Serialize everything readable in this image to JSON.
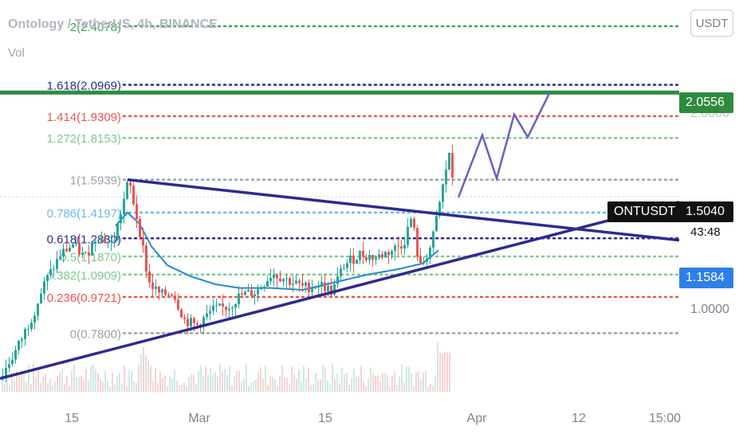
{
  "header": {
    "title": "Ontology / TetherUS, 4h, BINANCE",
    "vol_label": "Vol",
    "currency_button": "USDT"
  },
  "price_tags": {
    "target_price": "2.0556",
    "symbol": "ONTUSDT",
    "last_price": "1.5040",
    "countdown": "43:48",
    "support_price": "1.1584",
    "axis_partial_top": "2.0000",
    "axis_partial_bottom": "1.0000"
  },
  "colors": {
    "up": "#26a69a",
    "down": "#ef5350",
    "trendline": "#2e2a8f",
    "ma": "#1f8ad2",
    "projection": "#6b5fc6",
    "target_line": "#2e8b3e"
  },
  "chart_data": {
    "type": "candlestick",
    "title": "Ontology / TetherUS, 4h, BINANCE",
    "x_ticks": [
      "15",
      "Mar",
      "15",
      "Apr",
      "12",
      "15:00"
    ],
    "ylim": [
      0.5,
      2.5
    ],
    "fib_levels": [
      {
        "label": "2(2.4078)",
        "value": 2.4078,
        "color": "#3aa855"
      },
      {
        "label": "1.618(2.0969)",
        "value": 2.0969,
        "color": "#2e2a8f"
      },
      {
        "label": "1.414(1.9309)",
        "value": 1.9309,
        "color": "#ef5350"
      },
      {
        "label": "1.272(1.8153)",
        "value": 1.8153,
        "color": "#7fc98a"
      },
      {
        "label": "1(1.5939)",
        "value": 1.5939,
        "color": "#9aa0ab"
      },
      {
        "label": "0.786(1.4197)",
        "value": 1.4197,
        "color": "#6fb7ea"
      },
      {
        "label": "0.618(1.2830)",
        "value": 1.283,
        "color": "#2e2a8f"
      },
      {
        "label": "0.5(1.1870)",
        "value": 1.187,
        "color": "#7fc98a"
      },
      {
        "label": "0.382(1.0909)",
        "value": 1.0909,
        "color": "#7fc98a"
      },
      {
        "label": "0.236(0.9721)",
        "value": 0.9721,
        "color": "#ef5350"
      },
      {
        "label": "0(0.7800)",
        "value": 0.78,
        "color": "#9aa0ab"
      }
    ],
    "target_level": 2.0556,
    "last_price": 1.504,
    "support_level": 1.1584,
    "ma_path": [
      [
        145,
        1.35
      ],
      [
        160,
        1.42
      ],
      [
        175,
        1.36
      ],
      [
        190,
        1.24
      ],
      [
        210,
        1.14
      ],
      [
        240,
        1.08
      ],
      [
        270,
        1.04
      ],
      [
        300,
        1.02
      ],
      [
        340,
        1.02
      ],
      [
        380,
        1.01
      ],
      [
        420,
        1.05
      ],
      [
        460,
        1.09
      ],
      [
        500,
        1.12
      ],
      [
        530,
        1.15
      ],
      [
        550,
        1.22
      ]
    ],
    "price_path": [
      [
        0,
        0.55
      ],
      [
        20,
        0.7
      ],
      [
        40,
        0.88
      ],
      [
        55,
        1.05
      ],
      [
        75,
        1.2
      ],
      [
        90,
        1.25
      ],
      [
        105,
        1.18
      ],
      [
        120,
        1.3
      ],
      [
        140,
        1.25
      ],
      [
        160,
        1.59
      ],
      [
        175,
        1.3
      ],
      [
        185,
        1.05
      ],
      [
        200,
        0.98
      ],
      [
        215,
        1.0
      ],
      [
        230,
        0.85
      ],
      [
        245,
        0.82
      ],
      [
        265,
        0.9
      ],
      [
        285,
        0.92
      ],
      [
        300,
        0.98
      ],
      [
        320,
        1.0
      ],
      [
        340,
        1.1
      ],
      [
        360,
        1.06
      ],
      [
        380,
        1.02
      ],
      [
        400,
        1.04
      ],
      [
        415,
        1.0
      ],
      [
        430,
        1.14
      ],
      [
        450,
        1.2
      ],
      [
        470,
        1.18
      ],
      [
        490,
        1.22
      ],
      [
        505,
        1.26
      ],
      [
        515,
        1.4
      ],
      [
        525,
        1.12
      ],
      [
        540,
        1.25
      ],
      [
        555,
        1.58
      ],
      [
        562,
        1.74
      ],
      [
        568,
        1.5
      ]
    ],
    "trendlines": [
      {
        "from": [
          160,
          1.5939
        ],
        "to": [
          852,
          1.273
        ]
      },
      {
        "from": [
          0,
          0.54
        ],
        "to": [
          852,
          1.475
        ]
      }
    ],
    "projection": [
      [
        575,
        1.5
      ],
      [
        605,
        1.83
      ],
      [
        623,
        1.6
      ],
      [
        645,
        1.94
      ],
      [
        662,
        1.82
      ],
      [
        690,
        2.06
      ]
    ],
    "volume_x_range": [
      0,
      565
    ]
  }
}
